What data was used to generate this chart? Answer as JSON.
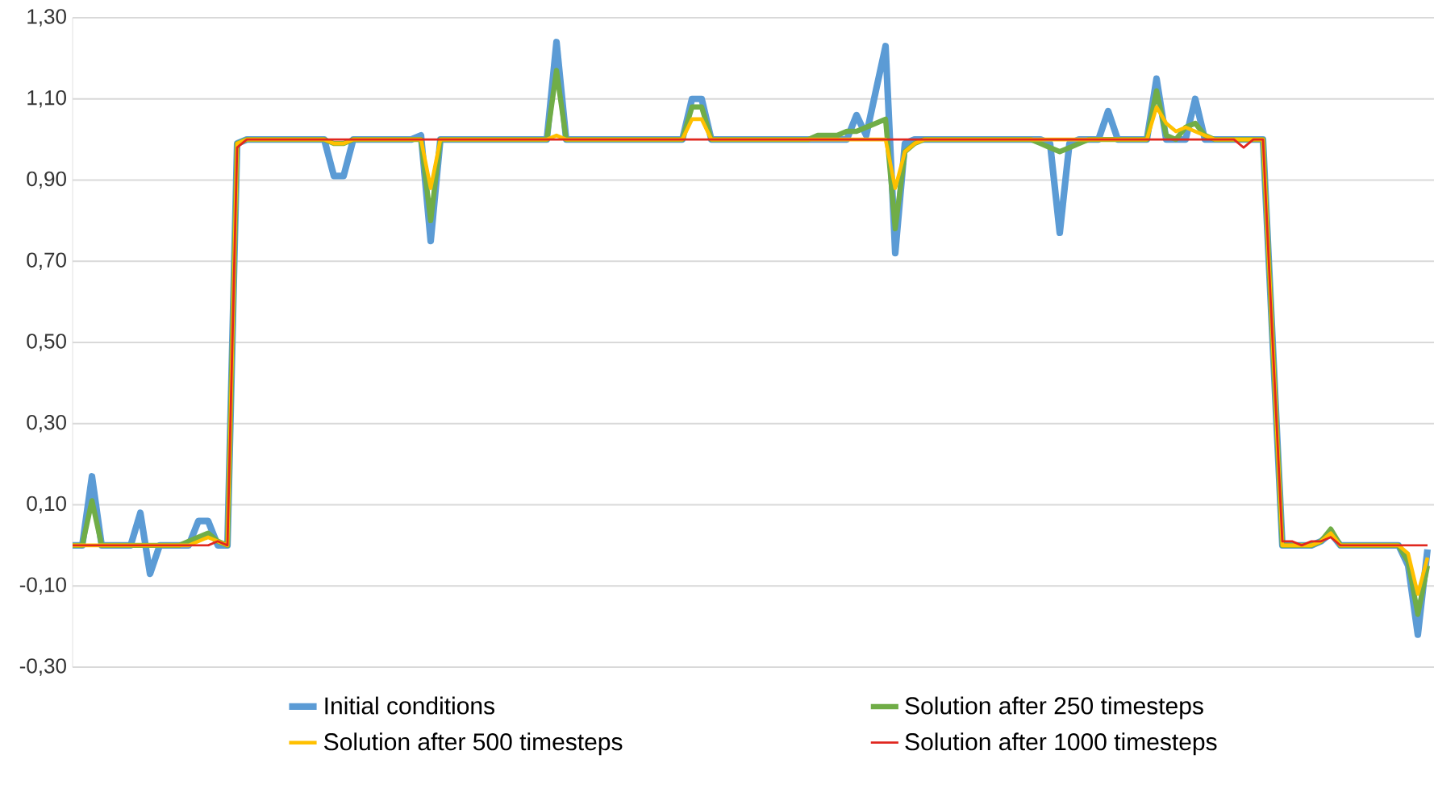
{
  "chart_data": {
    "type": "line",
    "categories": [
      null,
      null,
      null,
      null,
      null,
      null,
      null,
      null,
      null,
      null,
      null,
      null,
      null,
      null,
      null,
      null,
      null,
      null,
      null,
      null,
      null,
      null,
      null,
      null,
      null,
      null,
      null,
      null,
      null,
      null,
      null,
      null,
      null,
      null,
      null,
      null,
      null,
      null,
      null,
      null,
      null,
      null,
      null,
      null,
      null,
      null,
      null,
      null,
      null,
      null,
      null,
      null,
      null,
      null,
      null,
      null,
      null,
      null,
      null,
      null,
      null,
      null,
      null,
      null,
      null,
      null,
      null,
      null,
      null,
      null,
      null,
      null,
      null,
      null,
      null,
      null,
      null,
      null,
      null,
      null,
      null,
      null,
      null,
      null,
      null,
      null,
      null,
      null,
      null,
      null,
      null,
      null,
      null,
      null,
      null,
      null,
      null,
      null,
      null,
      null,
      null,
      null,
      null,
      null,
      null,
      null,
      null,
      null,
      null,
      null,
      null,
      null,
      null,
      null,
      null,
      null,
      null,
      null,
      null,
      null,
      null,
      null,
      null,
      null,
      null,
      null,
      null,
      null,
      null,
      null,
      null,
      null,
      null,
      null,
      null,
      null,
      null,
      null,
      null,
      null,
      null
    ],
    "series": [
      {
        "name": "Initial conditions",
        "color": "#5b9bd5",
        "values": [
          0,
          0,
          0.17,
          0,
          0,
          0,
          0,
          0.08,
          -0.07,
          0,
          0,
          0,
          0,
          0.06,
          0.06,
          0,
          0,
          0.99,
          1,
          1,
          1,
          1,
          1,
          1,
          1,
          1,
          1,
          0.91,
          0.91,
          1,
          1,
          1,
          1,
          1,
          1,
          1,
          1.01,
          0.75,
          1,
          1,
          1,
          1,
          1,
          1,
          1,
          1,
          1,
          1,
          1,
          1,
          1.24,
          1,
          1,
          1,
          1,
          1,
          1,
          1,
          1,
          1,
          1,
          1,
          1,
          1,
          1.1,
          1.1,
          1,
          1,
          1,
          1,
          1,
          1,
          1,
          1,
          1,
          1,
          1,
          1,
          1,
          1,
          1,
          1.06,
          1.01,
          1.12,
          1.23,
          0.72,
          0.99,
          1,
          1,
          1,
          1,
          1,
          1,
          1,
          1,
          1,
          1,
          1,
          1,
          1,
          1,
          0.99,
          0.77,
          0.99,
          1,
          1,
          1,
          1.07,
          1,
          1,
          1,
          1,
          1.15,
          1,
          1,
          1,
          1.1,
          1,
          1,
          1,
          1,
          1,
          1,
          1,
          0.5,
          0,
          0,
          0,
          0,
          0.01,
          0.03,
          0,
          0,
          0,
          0,
          0,
          0,
          0,
          -0.05,
          -0.22,
          -0.01
        ]
      },
      {
        "name": "Solution after 250 timesteps",
        "color": "#70ad47",
        "values": [
          0,
          0,
          0.11,
          0,
          0,
          0,
          0,
          0,
          0,
          0,
          0,
          0,
          0.01,
          0.02,
          0.03,
          0.01,
          0,
          0.99,
          1,
          1,
          1,
          1,
          1,
          1,
          1,
          1,
          1,
          0.99,
          0.99,
          1,
          1,
          1,
          1,
          1,
          1,
          1,
          1,
          0.8,
          1,
          1,
          1,
          1,
          1,
          1,
          1,
          1,
          1,
          1,
          1,
          1,
          1.17,
          1,
          1,
          1,
          1,
          1,
          1,
          1,
          1,
          1,
          1,
          1,
          1,
          1,
          1.08,
          1.08,
          1,
          1,
          1,
          1,
          1,
          1,
          1,
          1,
          1,
          1,
          1,
          1.01,
          1.01,
          1.01,
          1.02,
          1.02,
          1.03,
          1.04,
          1.05,
          0.78,
          0.97,
          0.99,
          1,
          1,
          1,
          1,
          1,
          1,
          1,
          1,
          1,
          1,
          1,
          1,
          0.99,
          0.98,
          0.97,
          0.98,
          0.99,
          1,
          1,
          1,
          1,
          1,
          1,
          1,
          1.12,
          1.01,
          1,
          1.03,
          1.04,
          1.01,
          1,
          1,
          1,
          1,
          1,
          1,
          0.5,
          0,
          0,
          0,
          0,
          0.01,
          0.04,
          0,
          0,
          0,
          0,
          0,
          0,
          0,
          -0.04,
          -0.17,
          -0.05
        ]
      },
      {
        "name": "Solution after 500 timesteps",
        "color": "#ffc000",
        "values": [
          0,
          0,
          0,
          0,
          0,
          0,
          0,
          0,
          0,
          0,
          0,
          0,
          0,
          0.01,
          0.02,
          0.01,
          0,
          0.99,
          1,
          1,
          1,
          1,
          1,
          1,
          1,
          1,
          1,
          0.99,
          0.99,
          1,
          1,
          1,
          1,
          1,
          1,
          1,
          1,
          0.88,
          1,
          1,
          1,
          1,
          1,
          1,
          1,
          1,
          1,
          1,
          1,
          1,
          1.01,
          1,
          1,
          1,
          1,
          1,
          1,
          1,
          1,
          1,
          1,
          1,
          1,
          1,
          1.05,
          1.05,
          1,
          1,
          1,
          1,
          1,
          1,
          1,
          1,
          1,
          1,
          1,
          1,
          1,
          1,
          1,
          1,
          1,
          1,
          1,
          0.88,
          0.97,
          0.99,
          1,
          1,
          1,
          1,
          1,
          1,
          1,
          1,
          1,
          1,
          1,
          1,
          1,
          1,
          1,
          1,
          1,
          1,
          1,
          1,
          1,
          1,
          1,
          1,
          1.08,
          1.04,
          1.02,
          1.03,
          1.02,
          1.01,
          1,
          1,
          1,
          1,
          1,
          1,
          0.5,
          0,
          0,
          0,
          0,
          0.01,
          0.03,
          0,
          0,
          0,
          0,
          0,
          0,
          0,
          -0.02,
          -0.12,
          -0.03
        ]
      },
      {
        "name": "Solution after 1000 timesteps",
        "color": "#e0271f",
        "values": [
          0,
          0,
          0,
          0,
          0,
          0,
          0,
          0,
          0,
          0,
          0,
          0,
          0,
          0,
          0,
          0.01,
          0,
          0.98,
          1,
          1,
          1,
          1,
          1,
          1,
          1,
          1,
          1,
          1,
          1,
          1,
          1,
          1,
          1,
          1,
          1,
          1,
          1,
          1,
          1,
          1,
          1,
          1,
          1,
          1,
          1,
          1,
          1,
          1,
          1,
          1,
          1,
          1,
          1,
          1,
          1,
          1,
          1,
          1,
          1,
          1,
          1,
          1,
          1,
          1,
          1,
          1,
          1,
          1,
          1,
          1,
          1,
          1,
          1,
          1,
          1,
          1,
          1,
          1,
          1,
          1,
          1,
          1,
          1,
          1,
          1,
          1,
          1,
          1,
          1,
          1,
          1,
          1,
          1,
          1,
          1,
          1,
          1,
          1,
          1,
          1,
          1,
          1,
          1,
          1,
          1,
          1,
          1,
          1,
          1,
          1,
          1,
          1,
          1,
          1,
          1,
          1,
          1,
          1,
          1,
          1,
          1,
          0.98,
          1,
          1,
          0.5,
          0.01,
          0.01,
          0,
          0.01,
          0.01,
          0.02,
          0,
          0,
          0,
          0,
          0,
          0,
          0,
          0,
          0,
          0
        ]
      }
    ],
    "ylim": [
      -0.3,
      1.3
    ],
    "yticks": [
      {
        "value": -0.3,
        "label": "-0,30"
      },
      {
        "value": -0.1,
        "label": "-0,10"
      },
      {
        "value": 0.1,
        "label": "0,10"
      },
      {
        "value": 0.3,
        "label": "0,30"
      },
      {
        "value": 0.5,
        "label": "0,50"
      },
      {
        "value": 0.7,
        "label": "0,70"
      },
      {
        "value": 0.9,
        "label": "0,90"
      },
      {
        "value": 1.1,
        "label": "1,10"
      },
      {
        "value": 1.3,
        "label": "1,30"
      }
    ],
    "grid": "y",
    "legend": "bottom"
  }
}
